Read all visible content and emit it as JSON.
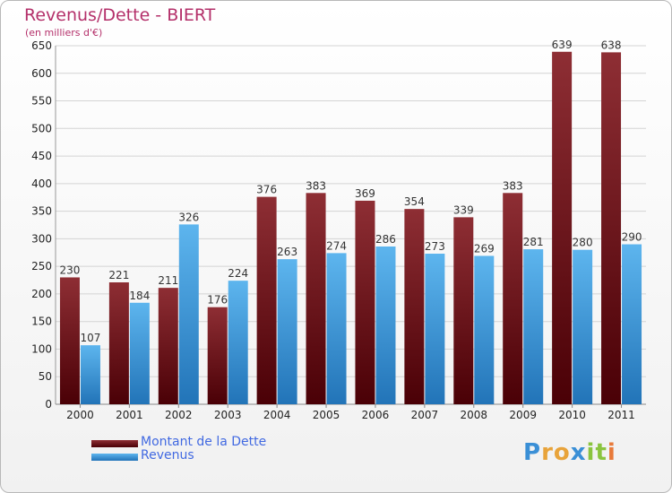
{
  "chart_data": {
    "type": "bar",
    "title": "Revenus/Dette - BIERT",
    "subtitle": "(en milliers d'€)",
    "categories": [
      "2000",
      "2001",
      "2002",
      "2003",
      "2004",
      "2005",
      "2006",
      "2007",
      "2008",
      "2009",
      "2010",
      "2011"
    ],
    "series": [
      {
        "name": "Montant de la Dette",
        "color": "#7a1a1f",
        "values": [
          230,
          221,
          211,
          176,
          376,
          383,
          369,
          354,
          339,
          383,
          639,
          638
        ]
      },
      {
        "name": "Revenus",
        "color": "#3ea1e0",
        "values": [
          107,
          184,
          326,
          224,
          263,
          274,
          286,
          273,
          269,
          281,
          280,
          290
        ]
      }
    ],
    "ylim": [
      0,
      650
    ],
    "yticks": [
      0,
      50,
      100,
      150,
      200,
      250,
      300,
      350,
      400,
      450,
      500,
      550,
      600,
      650
    ],
    "grid": true,
    "legend_position": "bottom-left"
  },
  "logo": {
    "letters": [
      "P",
      "r",
      "o",
      "x",
      "i",
      "t",
      "i"
    ],
    "colors": [
      "#3a8fd6",
      "#e8a33a",
      "#e8a33a",
      "#3a8fd6",
      "#8ac43f",
      "#8ac43f",
      "#e87a3a"
    ]
  }
}
